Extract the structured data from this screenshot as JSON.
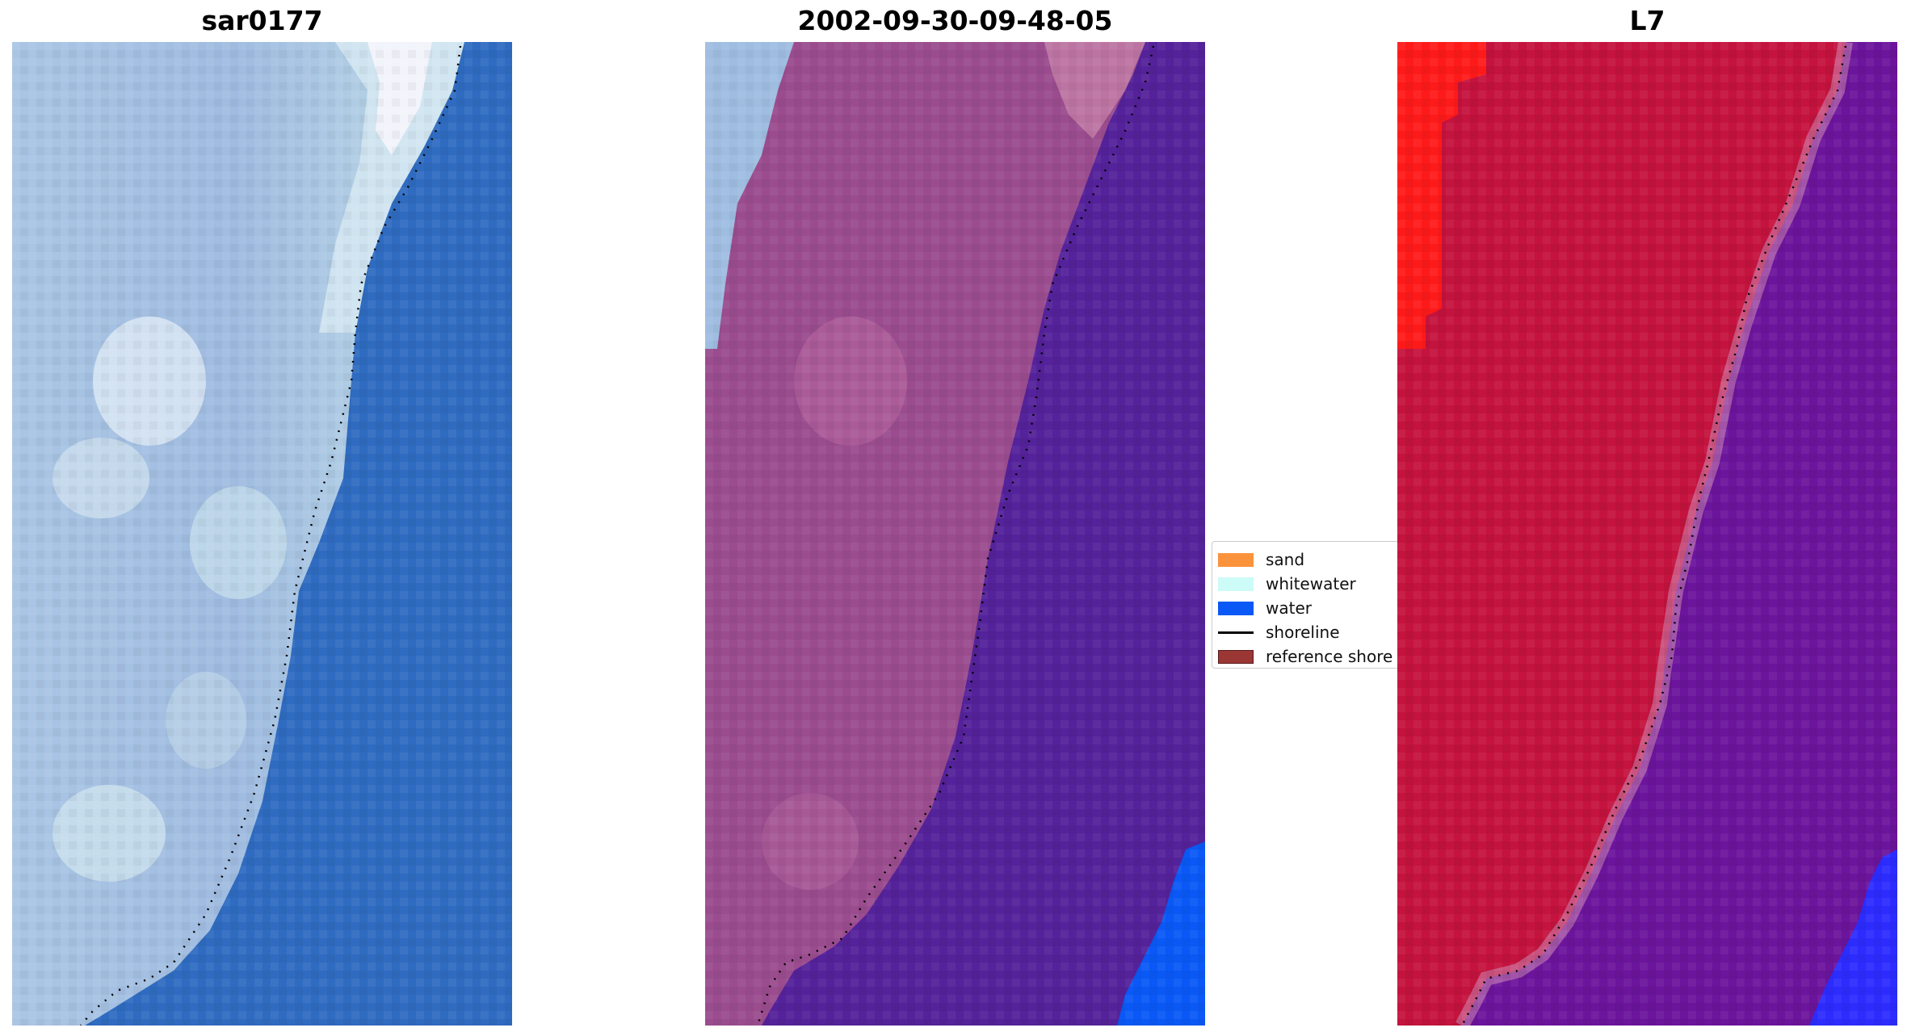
{
  "panels": [
    {
      "title": "sar0177",
      "kind": "rgb-image"
    },
    {
      "title": "2002-09-30-09-48-05",
      "kind": "classified-overlay"
    },
    {
      "title": "L7",
      "kind": "index-map"
    }
  ],
  "legend": {
    "items": [
      {
        "label": "sand",
        "type": "patch",
        "color": "#fb923c"
      },
      {
        "label": "whitewater",
        "type": "patch",
        "color": "#ccfbf8"
      },
      {
        "label": "water",
        "type": "patch",
        "color": "#0a58f5"
      },
      {
        "label": "shoreline",
        "type": "line",
        "color": "#000000"
      },
      {
        "label": "reference shore",
        "type": "patch",
        "color": "#9a3735"
      }
    ]
  },
  "colors": {
    "land_blue_light": "#a9c3e3",
    "ocean_blue": "#2f6bc0",
    "classified_land": "#9a4c8e",
    "classified_water": "#54229a",
    "classified_water_bright": "#0a58f5",
    "index_land": "#c4133e",
    "index_water": "#6b149c",
    "index_water_bright": "#2c2cff",
    "index_edge_red": "#ff1a1a"
  }
}
